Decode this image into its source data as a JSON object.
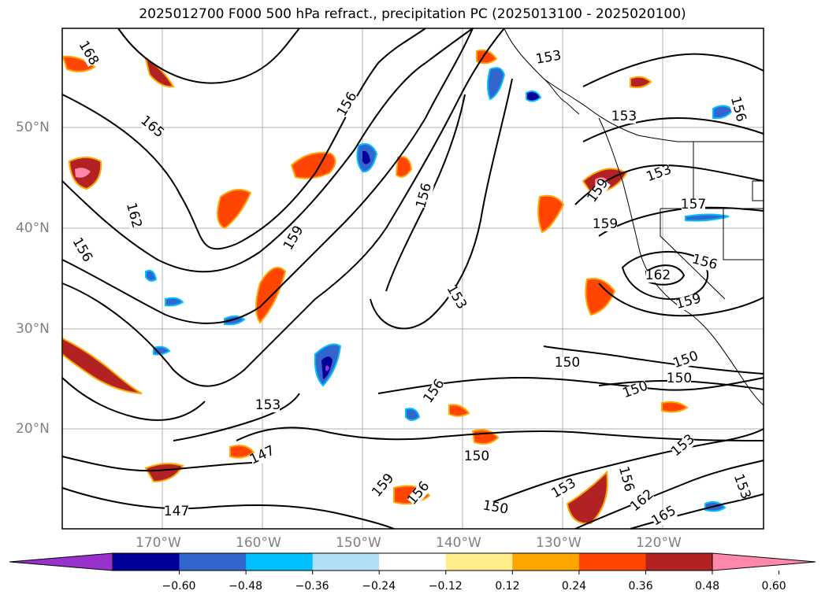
{
  "title": "2025012700 F000 500 hPa refract., precipitation PC (2025013100 - 2025020100)",
  "map": {
    "lat_labels": [
      "50°N",
      "40°N",
      "30°N",
      "20°N"
    ],
    "lon_labels": [
      "170°W",
      "160°W",
      "150°W",
      "140°W",
      "130°W",
      "120°W"
    ],
    "contour_labels": [
      "168",
      "165",
      "162",
      "156",
      "159",
      "156",
      "156",
      "153",
      "153",
      "159",
      "156",
      "153",
      "157",
      "159",
      "156",
      "162",
      "159",
      "153",
      "150",
      "150",
      "150",
      "150",
      "156",
      "153",
      "147",
      "147",
      "150",
      "153",
      "153",
      "156",
      "162",
      "165",
      "153",
      "150",
      "159",
      "156"
    ],
    "colors": {
      "land_outline": "#000000",
      "grid": "#b0b0b0"
    }
  },
  "colorbar": {
    "ticks": [
      "−0.60",
      "−0.48",
      "−0.36",
      "−0.24",
      "−0.12",
      "0.12",
      "0.24",
      "0.36",
      "0.48",
      "0.60"
    ],
    "colors": [
      "#9932cc",
      "#000099",
      "#3366cc",
      "#00bfff",
      "#b0e0f8",
      "#ffffff",
      "#ffec8b",
      "#ffa500",
      "#ff4500",
      "#b22222",
      "#ff88aa"
    ]
  }
}
